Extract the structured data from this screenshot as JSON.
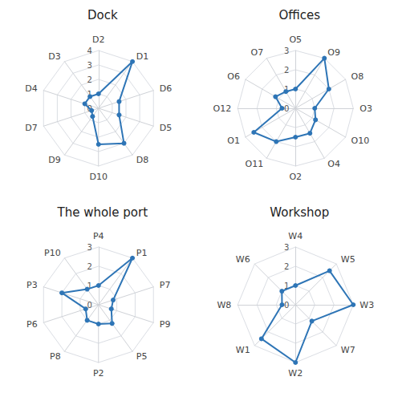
{
  "chart_data": [
    {
      "type": "radar",
      "title": "Dock",
      "categories": [
        "D2",
        "D3",
        "D4",
        "D7",
        "D9",
        "D10",
        "D8",
        "D5",
        "D6",
        "D1"
      ],
      "values": [
        1.0,
        1.0,
        1.0,
        0.5,
        0.7,
        2.5,
        3.0,
        1.5,
        1.5,
        4.0
      ],
      "ylim": [
        0,
        4
      ],
      "yticks": [
        0,
        1,
        2,
        3,
        4
      ],
      "color": "#2E75B6",
      "grid": true
    },
    {
      "type": "radar",
      "title": "Offices",
      "categories": [
        "O5",
        "O7",
        "O6",
        "O12",
        "O1",
        "O11",
        "O2",
        "O4",
        "O10",
        "O3",
        "O8",
        "O9"
      ],
      "values": [
        1.0,
        1.0,
        1.2,
        0.7,
        2.5,
        2.0,
        1.5,
        1.5,
        1.2,
        1.0,
        2.0,
        3.0
      ],
      "ylim": [
        0,
        3
      ],
      "yticks": [
        0,
        1,
        2,
        3
      ],
      "color": "#2E75B6",
      "grid": true
    },
    {
      "type": "radar",
      "title": "The whole port",
      "categories": [
        "P4",
        "P10",
        "P3",
        "P6",
        "P8",
        "P2",
        "P5",
        "P9",
        "P7",
        "P1"
      ],
      "values": [
        1.0,
        1.0,
        2.0,
        0.7,
        1.0,
        1.0,
        1.2,
        0.7,
        0.8,
        3.0
      ],
      "ylim": [
        0,
        3
      ],
      "yticks": [
        0,
        1,
        2,
        3
      ],
      "color": "#2E75B6",
      "grid": true
    },
    {
      "type": "radar",
      "title": "Workshop",
      "categories": [
        "W4",
        "W6",
        "W8",
        "W1",
        "W2",
        "W7",
        "W3",
        "W5"
      ],
      "values": [
        1.0,
        1.0,
        0.7,
        2.5,
        3.0,
        1.2,
        3.0,
        2.5
      ],
      "ylim": [
        0,
        3
      ],
      "yticks": [
        0,
        1,
        2,
        3
      ],
      "color": "#2E75B6",
      "grid": true
    }
  ]
}
